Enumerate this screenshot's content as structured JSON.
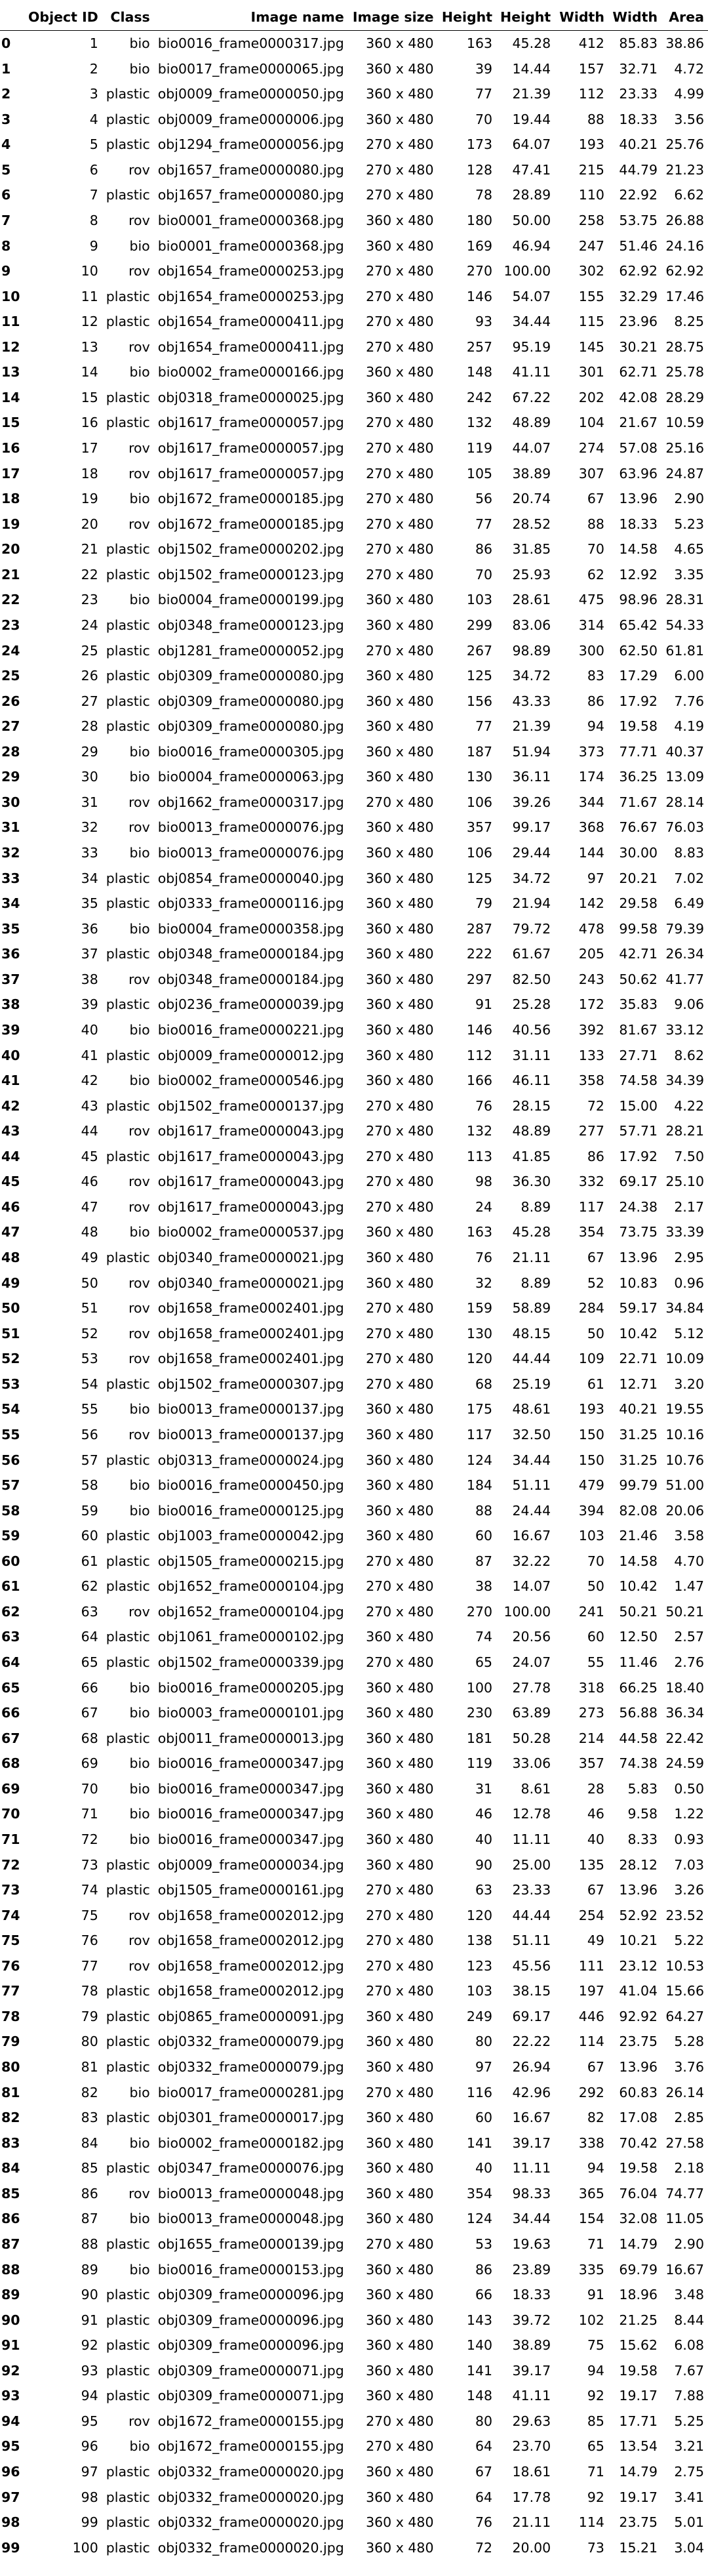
{
  "table": {
    "columns": [
      "",
      "Object ID",
      "Class",
      "Image name",
      "Image size",
      "Height",
      "Height",
      "Width",
      "Width",
      "Area"
    ],
    "rows": [
      [
        "0",
        "1",
        "bio",
        "bio0016_frame0000317.jpg",
        "360 x 480",
        "163",
        "45.28",
        "412",
        "85.83",
        "38.86"
      ],
      [
        "1",
        "2",
        "bio",
        "bio0017_frame0000065.jpg",
        "360 x 480",
        "39",
        "14.44",
        "157",
        "32.71",
        "4.72"
      ],
      [
        "2",
        "3",
        "plastic",
        "obj0009_frame0000050.jpg",
        "360 x 480",
        "77",
        "21.39",
        "112",
        "23.33",
        "4.99"
      ],
      [
        "3",
        "4",
        "plastic",
        "obj0009_frame0000006.jpg",
        "360 x 480",
        "70",
        "19.44",
        "88",
        "18.33",
        "3.56"
      ],
      [
        "4",
        "5",
        "plastic",
        "obj1294_frame0000056.jpg",
        "270 x 480",
        "173",
        "64.07",
        "193",
        "40.21",
        "25.76"
      ],
      [
        "5",
        "6",
        "rov",
        "obj1657_frame0000080.jpg",
        "270 x 480",
        "128",
        "47.41",
        "215",
        "44.79",
        "21.23"
      ],
      [
        "6",
        "7",
        "plastic",
        "obj1657_frame0000080.jpg",
        "270 x 480",
        "78",
        "28.89",
        "110",
        "22.92",
        "6.62"
      ],
      [
        "7",
        "8",
        "rov",
        "bio0001_frame0000368.jpg",
        "360 x 480",
        "180",
        "50.00",
        "258",
        "53.75",
        "26.88"
      ],
      [
        "8",
        "9",
        "bio",
        "bio0001_frame0000368.jpg",
        "360 x 480",
        "169",
        "46.94",
        "247",
        "51.46",
        "24.16"
      ],
      [
        "9",
        "10",
        "rov",
        "obj1654_frame0000253.jpg",
        "270 x 480",
        "270",
        "100.00",
        "302",
        "62.92",
        "62.92"
      ],
      [
        "10",
        "11",
        "plastic",
        "obj1654_frame0000253.jpg",
        "270 x 480",
        "146",
        "54.07",
        "155",
        "32.29",
        "17.46"
      ],
      [
        "11",
        "12",
        "plastic",
        "obj1654_frame0000411.jpg",
        "270 x 480",
        "93",
        "34.44",
        "115",
        "23.96",
        "8.25"
      ],
      [
        "12",
        "13",
        "rov",
        "obj1654_frame0000411.jpg",
        "270 x 480",
        "257",
        "95.19",
        "145",
        "30.21",
        "28.75"
      ],
      [
        "13",
        "14",
        "bio",
        "bio0002_frame0000166.jpg",
        "360 x 480",
        "148",
        "41.11",
        "301",
        "62.71",
        "25.78"
      ],
      [
        "14",
        "15",
        "plastic",
        "obj0318_frame0000025.jpg",
        "360 x 480",
        "242",
        "67.22",
        "202",
        "42.08",
        "28.29"
      ],
      [
        "15",
        "16",
        "plastic",
        "obj1617_frame0000057.jpg",
        "270 x 480",
        "132",
        "48.89",
        "104",
        "21.67",
        "10.59"
      ],
      [
        "16",
        "17",
        "rov",
        "obj1617_frame0000057.jpg",
        "270 x 480",
        "119",
        "44.07",
        "274",
        "57.08",
        "25.16"
      ],
      [
        "17",
        "18",
        "rov",
        "obj1617_frame0000057.jpg",
        "270 x 480",
        "105",
        "38.89",
        "307",
        "63.96",
        "24.87"
      ],
      [
        "18",
        "19",
        "bio",
        "obj1672_frame0000185.jpg",
        "270 x 480",
        "56",
        "20.74",
        "67",
        "13.96",
        "2.90"
      ],
      [
        "19",
        "20",
        "rov",
        "obj1672_frame0000185.jpg",
        "270 x 480",
        "77",
        "28.52",
        "88",
        "18.33",
        "5.23"
      ],
      [
        "20",
        "21",
        "plastic",
        "obj1502_frame0000202.jpg",
        "270 x 480",
        "86",
        "31.85",
        "70",
        "14.58",
        "4.65"
      ],
      [
        "21",
        "22",
        "plastic",
        "obj1502_frame0000123.jpg",
        "270 x 480",
        "70",
        "25.93",
        "62",
        "12.92",
        "3.35"
      ],
      [
        "22",
        "23",
        "bio",
        "bio0004_frame0000199.jpg",
        "360 x 480",
        "103",
        "28.61",
        "475",
        "98.96",
        "28.31"
      ],
      [
        "23",
        "24",
        "plastic",
        "obj0348_frame0000123.jpg",
        "360 x 480",
        "299",
        "83.06",
        "314",
        "65.42",
        "54.33"
      ],
      [
        "24",
        "25",
        "plastic",
        "obj1281_frame0000052.jpg",
        "270 x 480",
        "267",
        "98.89",
        "300",
        "62.50",
        "61.81"
      ],
      [
        "25",
        "26",
        "plastic",
        "obj0309_frame0000080.jpg",
        "360 x 480",
        "125",
        "34.72",
        "83",
        "17.29",
        "6.00"
      ],
      [
        "26",
        "27",
        "plastic",
        "obj0309_frame0000080.jpg",
        "360 x 480",
        "156",
        "43.33",
        "86",
        "17.92",
        "7.76"
      ],
      [
        "27",
        "28",
        "plastic",
        "obj0309_frame0000080.jpg",
        "360 x 480",
        "77",
        "21.39",
        "94",
        "19.58",
        "4.19"
      ],
      [
        "28",
        "29",
        "bio",
        "bio0016_frame0000305.jpg",
        "360 x 480",
        "187",
        "51.94",
        "373",
        "77.71",
        "40.37"
      ],
      [
        "29",
        "30",
        "bio",
        "bio0004_frame0000063.jpg",
        "360 x 480",
        "130",
        "36.11",
        "174",
        "36.25",
        "13.09"
      ],
      [
        "30",
        "31",
        "rov",
        "obj1662_frame0000317.jpg",
        "270 x 480",
        "106",
        "39.26",
        "344",
        "71.67",
        "28.14"
      ],
      [
        "31",
        "32",
        "rov",
        "bio0013_frame0000076.jpg",
        "360 x 480",
        "357",
        "99.17",
        "368",
        "76.67",
        "76.03"
      ],
      [
        "32",
        "33",
        "bio",
        "bio0013_frame0000076.jpg",
        "360 x 480",
        "106",
        "29.44",
        "144",
        "30.00",
        "8.83"
      ],
      [
        "33",
        "34",
        "plastic",
        "obj0854_frame0000040.jpg",
        "360 x 480",
        "125",
        "34.72",
        "97",
        "20.21",
        "7.02"
      ],
      [
        "34",
        "35",
        "plastic",
        "obj0333_frame0000116.jpg",
        "360 x 480",
        "79",
        "21.94",
        "142",
        "29.58",
        "6.49"
      ],
      [
        "35",
        "36",
        "bio",
        "bio0004_frame0000358.jpg",
        "360 x 480",
        "287",
        "79.72",
        "478",
        "99.58",
        "79.39"
      ],
      [
        "36",
        "37",
        "plastic",
        "obj0348_frame0000184.jpg",
        "360 x 480",
        "222",
        "61.67",
        "205",
        "42.71",
        "26.34"
      ],
      [
        "37",
        "38",
        "rov",
        "obj0348_frame0000184.jpg",
        "360 x 480",
        "297",
        "82.50",
        "243",
        "50.62",
        "41.77"
      ],
      [
        "38",
        "39",
        "plastic",
        "obj0236_frame0000039.jpg",
        "360 x 480",
        "91",
        "25.28",
        "172",
        "35.83",
        "9.06"
      ],
      [
        "39",
        "40",
        "bio",
        "bio0016_frame0000221.jpg",
        "360 x 480",
        "146",
        "40.56",
        "392",
        "81.67",
        "33.12"
      ],
      [
        "40",
        "41",
        "plastic",
        "obj0009_frame0000012.jpg",
        "360 x 480",
        "112",
        "31.11",
        "133",
        "27.71",
        "8.62"
      ],
      [
        "41",
        "42",
        "bio",
        "bio0002_frame0000546.jpg",
        "360 x 480",
        "166",
        "46.11",
        "358",
        "74.58",
        "34.39"
      ],
      [
        "42",
        "43",
        "plastic",
        "obj1502_frame0000137.jpg",
        "270 x 480",
        "76",
        "28.15",
        "72",
        "15.00",
        "4.22"
      ],
      [
        "43",
        "44",
        "rov",
        "obj1617_frame0000043.jpg",
        "270 x 480",
        "132",
        "48.89",
        "277",
        "57.71",
        "28.21"
      ],
      [
        "44",
        "45",
        "plastic",
        "obj1617_frame0000043.jpg",
        "270 x 480",
        "113",
        "41.85",
        "86",
        "17.92",
        "7.50"
      ],
      [
        "45",
        "46",
        "rov",
        "obj1617_frame0000043.jpg",
        "270 x 480",
        "98",
        "36.30",
        "332",
        "69.17",
        "25.10"
      ],
      [
        "46",
        "47",
        "rov",
        "obj1617_frame0000043.jpg",
        "270 x 480",
        "24",
        "8.89",
        "117",
        "24.38",
        "2.17"
      ],
      [
        "47",
        "48",
        "bio",
        "bio0002_frame0000537.jpg",
        "360 x 480",
        "163",
        "45.28",
        "354",
        "73.75",
        "33.39"
      ],
      [
        "48",
        "49",
        "plastic",
        "obj0340_frame0000021.jpg",
        "360 x 480",
        "76",
        "21.11",
        "67",
        "13.96",
        "2.95"
      ],
      [
        "49",
        "50",
        "rov",
        "obj0340_frame0000021.jpg",
        "360 x 480",
        "32",
        "8.89",
        "52",
        "10.83",
        "0.96"
      ],
      [
        "50",
        "51",
        "rov",
        "obj1658_frame0002401.jpg",
        "270 x 480",
        "159",
        "58.89",
        "284",
        "59.17",
        "34.84"
      ],
      [
        "51",
        "52",
        "rov",
        "obj1658_frame0002401.jpg",
        "270 x 480",
        "130",
        "48.15",
        "50",
        "10.42",
        "5.12"
      ],
      [
        "52",
        "53",
        "rov",
        "obj1658_frame0002401.jpg",
        "270 x 480",
        "120",
        "44.44",
        "109",
        "22.71",
        "10.09"
      ],
      [
        "53",
        "54",
        "plastic",
        "obj1502_frame0000307.jpg",
        "270 x 480",
        "68",
        "25.19",
        "61",
        "12.71",
        "3.20"
      ],
      [
        "54",
        "55",
        "bio",
        "bio0013_frame0000137.jpg",
        "360 x 480",
        "175",
        "48.61",
        "193",
        "40.21",
        "19.55"
      ],
      [
        "55",
        "56",
        "rov",
        "bio0013_frame0000137.jpg",
        "360 x 480",
        "117",
        "32.50",
        "150",
        "31.25",
        "10.16"
      ],
      [
        "56",
        "57",
        "plastic",
        "obj0313_frame0000024.jpg",
        "360 x 480",
        "124",
        "34.44",
        "150",
        "31.25",
        "10.76"
      ],
      [
        "57",
        "58",
        "bio",
        "bio0016_frame0000450.jpg",
        "360 x 480",
        "184",
        "51.11",
        "479",
        "99.79",
        "51.00"
      ],
      [
        "58",
        "59",
        "bio",
        "bio0016_frame0000125.jpg",
        "360 x 480",
        "88",
        "24.44",
        "394",
        "82.08",
        "20.06"
      ],
      [
        "59",
        "60",
        "plastic",
        "obj1003_frame0000042.jpg",
        "360 x 480",
        "60",
        "16.67",
        "103",
        "21.46",
        "3.58"
      ],
      [
        "60",
        "61",
        "plastic",
        "obj1505_frame0000215.jpg",
        "270 x 480",
        "87",
        "32.22",
        "70",
        "14.58",
        "4.70"
      ],
      [
        "61",
        "62",
        "plastic",
        "obj1652_frame0000104.jpg",
        "270 x 480",
        "38",
        "14.07",
        "50",
        "10.42",
        "1.47"
      ],
      [
        "62",
        "63",
        "rov",
        "obj1652_frame0000104.jpg",
        "270 x 480",
        "270",
        "100.00",
        "241",
        "50.21",
        "50.21"
      ],
      [
        "63",
        "64",
        "plastic",
        "obj1061_frame0000102.jpg",
        "360 x 480",
        "74",
        "20.56",
        "60",
        "12.50",
        "2.57"
      ],
      [
        "64",
        "65",
        "plastic",
        "obj1502_frame0000339.jpg",
        "270 x 480",
        "65",
        "24.07",
        "55",
        "11.46",
        "2.76"
      ],
      [
        "65",
        "66",
        "bio",
        "bio0016_frame0000205.jpg",
        "360 x 480",
        "100",
        "27.78",
        "318",
        "66.25",
        "18.40"
      ],
      [
        "66",
        "67",
        "bio",
        "bio0003_frame0000101.jpg",
        "360 x 480",
        "230",
        "63.89",
        "273",
        "56.88",
        "36.34"
      ],
      [
        "67",
        "68",
        "plastic",
        "obj0011_frame0000013.jpg",
        "360 x 480",
        "181",
        "50.28",
        "214",
        "44.58",
        "22.42"
      ],
      [
        "68",
        "69",
        "bio",
        "bio0016_frame0000347.jpg",
        "360 x 480",
        "119",
        "33.06",
        "357",
        "74.38",
        "24.59"
      ],
      [
        "69",
        "70",
        "bio",
        "bio0016_frame0000347.jpg",
        "360 x 480",
        "31",
        "8.61",
        "28",
        "5.83",
        "0.50"
      ],
      [
        "70",
        "71",
        "bio",
        "bio0016_frame0000347.jpg",
        "360 x 480",
        "46",
        "12.78",
        "46",
        "9.58",
        "1.22"
      ],
      [
        "71",
        "72",
        "bio",
        "bio0016_frame0000347.jpg",
        "360 x 480",
        "40",
        "11.11",
        "40",
        "8.33",
        "0.93"
      ],
      [
        "72",
        "73",
        "plastic",
        "obj0009_frame0000034.jpg",
        "360 x 480",
        "90",
        "25.00",
        "135",
        "28.12",
        "7.03"
      ],
      [
        "73",
        "74",
        "plastic",
        "obj1505_frame0000161.jpg",
        "270 x 480",
        "63",
        "23.33",
        "67",
        "13.96",
        "3.26"
      ],
      [
        "74",
        "75",
        "rov",
        "obj1658_frame0002012.jpg",
        "270 x 480",
        "120",
        "44.44",
        "254",
        "52.92",
        "23.52"
      ],
      [
        "75",
        "76",
        "rov",
        "obj1658_frame0002012.jpg",
        "270 x 480",
        "138",
        "51.11",
        "49",
        "10.21",
        "5.22"
      ],
      [
        "76",
        "77",
        "rov",
        "obj1658_frame0002012.jpg",
        "270 x 480",
        "123",
        "45.56",
        "111",
        "23.12",
        "10.53"
      ],
      [
        "77",
        "78",
        "plastic",
        "obj1658_frame0002012.jpg",
        "270 x 480",
        "103",
        "38.15",
        "197",
        "41.04",
        "15.66"
      ],
      [
        "78",
        "79",
        "plastic",
        "obj0865_frame0000091.jpg",
        "360 x 480",
        "249",
        "69.17",
        "446",
        "92.92",
        "64.27"
      ],
      [
        "79",
        "80",
        "plastic",
        "obj0332_frame0000079.jpg",
        "360 x 480",
        "80",
        "22.22",
        "114",
        "23.75",
        "5.28"
      ],
      [
        "80",
        "81",
        "plastic",
        "obj0332_frame0000079.jpg",
        "360 x 480",
        "97",
        "26.94",
        "67",
        "13.96",
        "3.76"
      ],
      [
        "81",
        "82",
        "bio",
        "bio0017_frame0000281.jpg",
        "270 x 480",
        "116",
        "42.96",
        "292",
        "60.83",
        "26.14"
      ],
      [
        "82",
        "83",
        "plastic",
        "obj0301_frame0000017.jpg",
        "360 x 480",
        "60",
        "16.67",
        "82",
        "17.08",
        "2.85"
      ],
      [
        "83",
        "84",
        "bio",
        "bio0002_frame0000182.jpg",
        "360 x 480",
        "141",
        "39.17",
        "338",
        "70.42",
        "27.58"
      ],
      [
        "84",
        "85",
        "plastic",
        "obj0347_frame0000076.jpg",
        "360 x 480",
        "40",
        "11.11",
        "94",
        "19.58",
        "2.18"
      ],
      [
        "85",
        "86",
        "rov",
        "bio0013_frame0000048.jpg",
        "360 x 480",
        "354",
        "98.33",
        "365",
        "76.04",
        "74.77"
      ],
      [
        "86",
        "87",
        "bio",
        "bio0013_frame0000048.jpg",
        "360 x 480",
        "124",
        "34.44",
        "154",
        "32.08",
        "11.05"
      ],
      [
        "87",
        "88",
        "plastic",
        "obj1655_frame0000139.jpg",
        "270 x 480",
        "53",
        "19.63",
        "71",
        "14.79",
        "2.90"
      ],
      [
        "88",
        "89",
        "bio",
        "bio0016_frame0000153.jpg",
        "360 x 480",
        "86",
        "23.89",
        "335",
        "69.79",
        "16.67"
      ],
      [
        "89",
        "90",
        "plastic",
        "obj0309_frame0000096.jpg",
        "360 x 480",
        "66",
        "18.33",
        "91",
        "18.96",
        "3.48"
      ],
      [
        "90",
        "91",
        "plastic",
        "obj0309_frame0000096.jpg",
        "360 x 480",
        "143",
        "39.72",
        "102",
        "21.25",
        "8.44"
      ],
      [
        "91",
        "92",
        "plastic",
        "obj0309_frame0000096.jpg",
        "360 x 480",
        "140",
        "38.89",
        "75",
        "15.62",
        "6.08"
      ],
      [
        "92",
        "93",
        "plastic",
        "obj0309_frame0000071.jpg",
        "360 x 480",
        "141",
        "39.17",
        "94",
        "19.58",
        "7.67"
      ],
      [
        "93",
        "94",
        "plastic",
        "obj0309_frame0000071.jpg",
        "360 x 480",
        "148",
        "41.11",
        "92",
        "19.17",
        "7.88"
      ],
      [
        "94",
        "95",
        "rov",
        "obj1672_frame0000155.jpg",
        "270 x 480",
        "80",
        "29.63",
        "85",
        "17.71",
        "5.25"
      ],
      [
        "95",
        "96",
        "bio",
        "obj1672_frame0000155.jpg",
        "270 x 480",
        "64",
        "23.70",
        "65",
        "13.54",
        "3.21"
      ],
      [
        "96",
        "97",
        "plastic",
        "obj0332_frame0000020.jpg",
        "360 x 480",
        "67",
        "18.61",
        "71",
        "14.79",
        "2.75"
      ],
      [
        "97",
        "98",
        "plastic",
        "obj0332_frame0000020.jpg",
        "360 x 480",
        "64",
        "17.78",
        "92",
        "19.17",
        "3.41"
      ],
      [
        "98",
        "99",
        "plastic",
        "obj0332_frame0000020.jpg",
        "360 x 480",
        "76",
        "21.11",
        "114",
        "23.75",
        "5.01"
      ],
      [
        "99",
        "100",
        "plastic",
        "obj0332_frame0000020.jpg",
        "360 x 480",
        "72",
        "20.00",
        "73",
        "15.21",
        "3.04"
      ]
    ]
  }
}
